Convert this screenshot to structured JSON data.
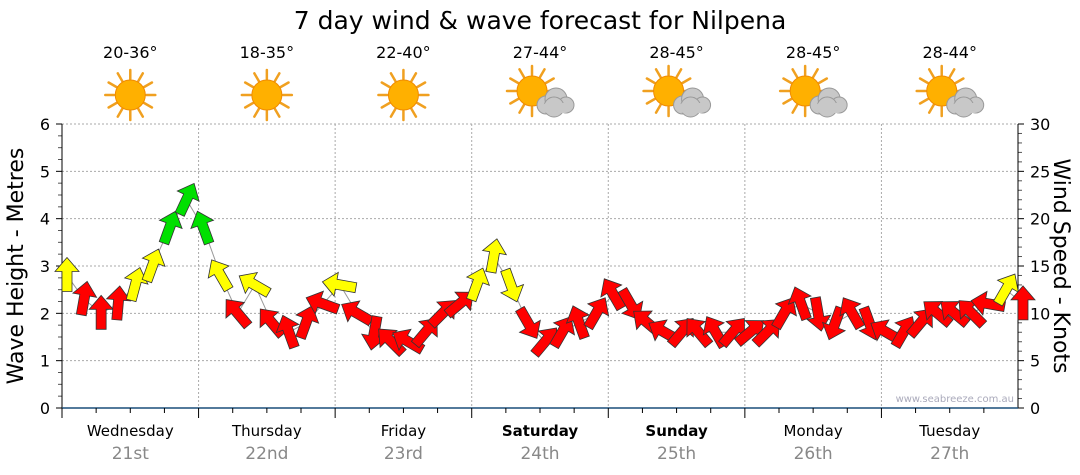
{
  "chart_data": {
    "type": "scatter",
    "title": "7 day wind & wave forecast for Nilpena",
    "ylabel_left": "Wave Height - Metres",
    "ylabel_right": "Wind Speed - Knots",
    "ylim_left": [
      0,
      6
    ],
    "ylim_right": [
      0,
      30
    ],
    "yticks_left": [
      "0",
      "1",
      "2",
      "3",
      "4",
      "5",
      "6"
    ],
    "yticks_right": [
      "0",
      "5",
      "10",
      "15",
      "20",
      "25",
      "30"
    ],
    "grid": true,
    "watermark": "www.seabreeze.com.au",
    "days": [
      {
        "name": "Wednesday",
        "date": "21st",
        "temp": "20-36°",
        "icon": "sun",
        "bold": false
      },
      {
        "name": "Thursday",
        "date": "22nd",
        "temp": "18-35°",
        "icon": "sun",
        "bold": false
      },
      {
        "name": "Friday",
        "date": "23rd",
        "temp": "22-40°",
        "icon": "sun",
        "bold": false
      },
      {
        "name": "Saturday",
        "date": "24th",
        "temp": "27-44°",
        "icon": "sun-cloud",
        "bold": true
      },
      {
        "name": "Sunday",
        "date": "25th",
        "temp": "28-45°",
        "icon": "sun-cloud",
        "bold": true
      },
      {
        "name": "Monday",
        "date": "26th",
        "temp": "28-45°",
        "icon": "sun-cloud",
        "bold": false
      },
      {
        "name": "Tuesday",
        "date": "27th",
        "temp": "28-44°",
        "icon": "sun-cloud",
        "bold": false
      }
    ],
    "wind_interval_hours": 3,
    "wind_speed_knots": [
      14,
      11.5,
      10,
      11,
      13,
      15,
      19,
      22,
      19,
      14,
      10,
      13,
      9,
      8,
      9,
      11,
      13,
      10,
      8,
      7,
      7,
      8,
      10,
      11,
      13,
      16,
      13,
      9,
      7,
      8,
      9,
      10,
      12,
      11,
      9,
      8,
      8,
      8,
      8,
      8,
      8,
      8,
      10,
      11,
      10,
      9,
      10,
      9,
      8,
      8,
      9,
      10,
      10,
      10,
      11,
      12.5,
      11
    ],
    "wind_direction_deg": [
      0,
      10,
      0,
      5,
      15,
      20,
      20,
      25,
      -20,
      -30,
      -40,
      -60,
      -40,
      -20,
      20,
      -70,
      -80,
      -60,
      190,
      -45,
      -60,
      40,
      45,
      50,
      20,
      10,
      160,
      150,
      40,
      30,
      -20,
      30,
      -30,
      150,
      -50,
      -60,
      40,
      -40,
      -30,
      40,
      50,
      45,
      30,
      -20,
      170,
      200,
      -30,
      160,
      -60,
      30,
      40,
      -50,
      -50,
      -45,
      -80,
      30,
      0
    ],
    "color_thresholds_knots": {
      "yellow": 12.5,
      "green": 18
    },
    "colors": {
      "red": "#ff0000",
      "yellow": "#ffff00",
      "green": "#00e000",
      "grid": "#aaaaaa",
      "axis": "#1a4f7a",
      "date": "#888888"
    }
  }
}
